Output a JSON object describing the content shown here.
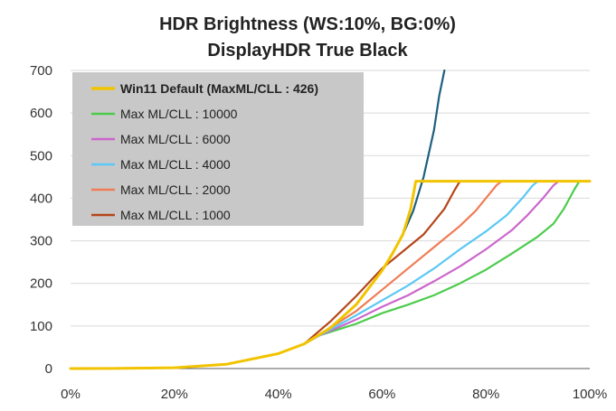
{
  "chart_data": {
    "type": "line",
    "title": "HDR Brightness (WS:10%, BG:0%)",
    "subtitle": "DisplayHDR True Black",
    "xlabel": "",
    "ylabel": "",
    "xlim": [
      0,
      100
    ],
    "ylim": [
      0,
      700
    ],
    "x_ticks": [
      0,
      20,
      40,
      60,
      80,
      100
    ],
    "x_tick_labels": [
      "0%",
      "20%",
      "40%",
      "60%",
      "80%",
      "100%"
    ],
    "y_ticks": [
      0,
      100,
      200,
      300,
      400,
      500,
      600,
      700
    ],
    "y_tick_labels": [
      "0",
      "100",
      "200",
      "300",
      "400",
      "500",
      "600",
      "700"
    ],
    "grid": "horizontal",
    "legend_position": "top-left",
    "series": [
      {
        "name": "",
        "color": "#1f5f7f",
        "in_legend": false,
        "points": [
          [
            0,
            0
          ],
          [
            10,
            0.4
          ],
          [
            20,
            2
          ],
          [
            30,
            10
          ],
          [
            40,
            35
          ],
          [
            45,
            58
          ],
          [
            50,
            95
          ],
          [
            55,
            150
          ],
          [
            60,
            230
          ],
          [
            62,
            270
          ],
          [
            64,
            315
          ],
          [
            66,
            370
          ],
          [
            68,
            450
          ],
          [
            70,
            560
          ],
          [
            71,
            640
          ],
          [
            72,
            700
          ]
        ]
      },
      {
        "name": "Win11 Default (MaxML/CLL : 426)",
        "color": "#f2c300",
        "bold": true,
        "points": [
          [
            0,
            0
          ],
          [
            10,
            0.4
          ],
          [
            20,
            2
          ],
          [
            30,
            10
          ],
          [
            40,
            35
          ],
          [
            45,
            58
          ],
          [
            50,
            95
          ],
          [
            55,
            150
          ],
          [
            60,
            230
          ],
          [
            62,
            270
          ],
          [
            64,
            315
          ],
          [
            65.5,
            375
          ],
          [
            66.5,
            440
          ],
          [
            100,
            440
          ]
        ]
      },
      {
        "name": "Max ML/CLL : 10000",
        "color": "#4ccc4c",
        "points": [
          [
            0,
            0
          ],
          [
            10,
            0.4
          ],
          [
            20,
            2
          ],
          [
            30,
            10
          ],
          [
            40,
            35
          ],
          [
            45,
            58
          ],
          [
            48,
            78
          ],
          [
            55,
            105
          ],
          [
            60,
            130
          ],
          [
            65,
            150
          ],
          [
            70,
            172
          ],
          [
            75,
            200
          ],
          [
            80,
            232
          ],
          [
            85,
            270
          ],
          [
            90,
            310
          ],
          [
            93,
            340
          ],
          [
            95,
            375
          ],
          [
            97,
            420
          ],
          [
            98,
            440
          ],
          [
            100,
            440
          ]
        ]
      },
      {
        "name": "Max ML/CLL : 6000",
        "color": "#cc66cc",
        "points": [
          [
            0,
            0
          ],
          [
            10,
            0.4
          ],
          [
            20,
            2
          ],
          [
            30,
            10
          ],
          [
            40,
            35
          ],
          [
            45,
            58
          ],
          [
            48,
            78
          ],
          [
            55,
            115
          ],
          [
            60,
            145
          ],
          [
            65,
            172
          ],
          [
            70,
            205
          ],
          [
            75,
            240
          ],
          [
            80,
            280
          ],
          [
            85,
            325
          ],
          [
            88,
            360
          ],
          [
            91,
            400
          ],
          [
            93,
            430
          ],
          [
            94,
            440
          ],
          [
            100,
            440
          ]
        ]
      },
      {
        "name": "Max ML/CLL : 4000",
        "color": "#5bc8f5",
        "points": [
          [
            0,
            0
          ],
          [
            10,
            0.4
          ],
          [
            20,
            2
          ],
          [
            30,
            10
          ],
          [
            40,
            35
          ],
          [
            45,
            58
          ],
          [
            48,
            78
          ],
          [
            55,
            125
          ],
          [
            60,
            160
          ],
          [
            65,
            195
          ],
          [
            70,
            235
          ],
          [
            75,
            280
          ],
          [
            80,
            322
          ],
          [
            84,
            360
          ],
          [
            87,
            400
          ],
          [
            89,
            430
          ],
          [
            90,
            440
          ],
          [
            100,
            440
          ]
        ]
      },
      {
        "name": "Max ML/CLL : 2000",
        "color": "#f07c55",
        "points": [
          [
            0,
            0
          ],
          [
            10,
            0.4
          ],
          [
            20,
            2
          ],
          [
            30,
            10
          ],
          [
            40,
            35
          ],
          [
            45,
            58
          ],
          [
            48,
            80
          ],
          [
            55,
            135
          ],
          [
            60,
            185
          ],
          [
            65,
            235
          ],
          [
            70,
            285
          ],
          [
            75,
            335
          ],
          [
            78,
            370
          ],
          [
            80,
            400
          ],
          [
            82,
            430
          ],
          [
            83,
            440
          ],
          [
            100,
            440
          ]
        ]
      },
      {
        "name": "Max ML/CLL : 1000",
        "color": "#b5461a",
        "points": [
          [
            0,
            0
          ],
          [
            10,
            0.4
          ],
          [
            20,
            2
          ],
          [
            30,
            10
          ],
          [
            40,
            35
          ],
          [
            45,
            58
          ],
          [
            50,
            110
          ],
          [
            55,
            170
          ],
          [
            60,
            235
          ],
          [
            65,
            285
          ],
          [
            68,
            315
          ],
          [
            70,
            345
          ],
          [
            72,
            375
          ],
          [
            74,
            420
          ],
          [
            75,
            440
          ],
          [
            100,
            440
          ]
        ]
      }
    ]
  }
}
